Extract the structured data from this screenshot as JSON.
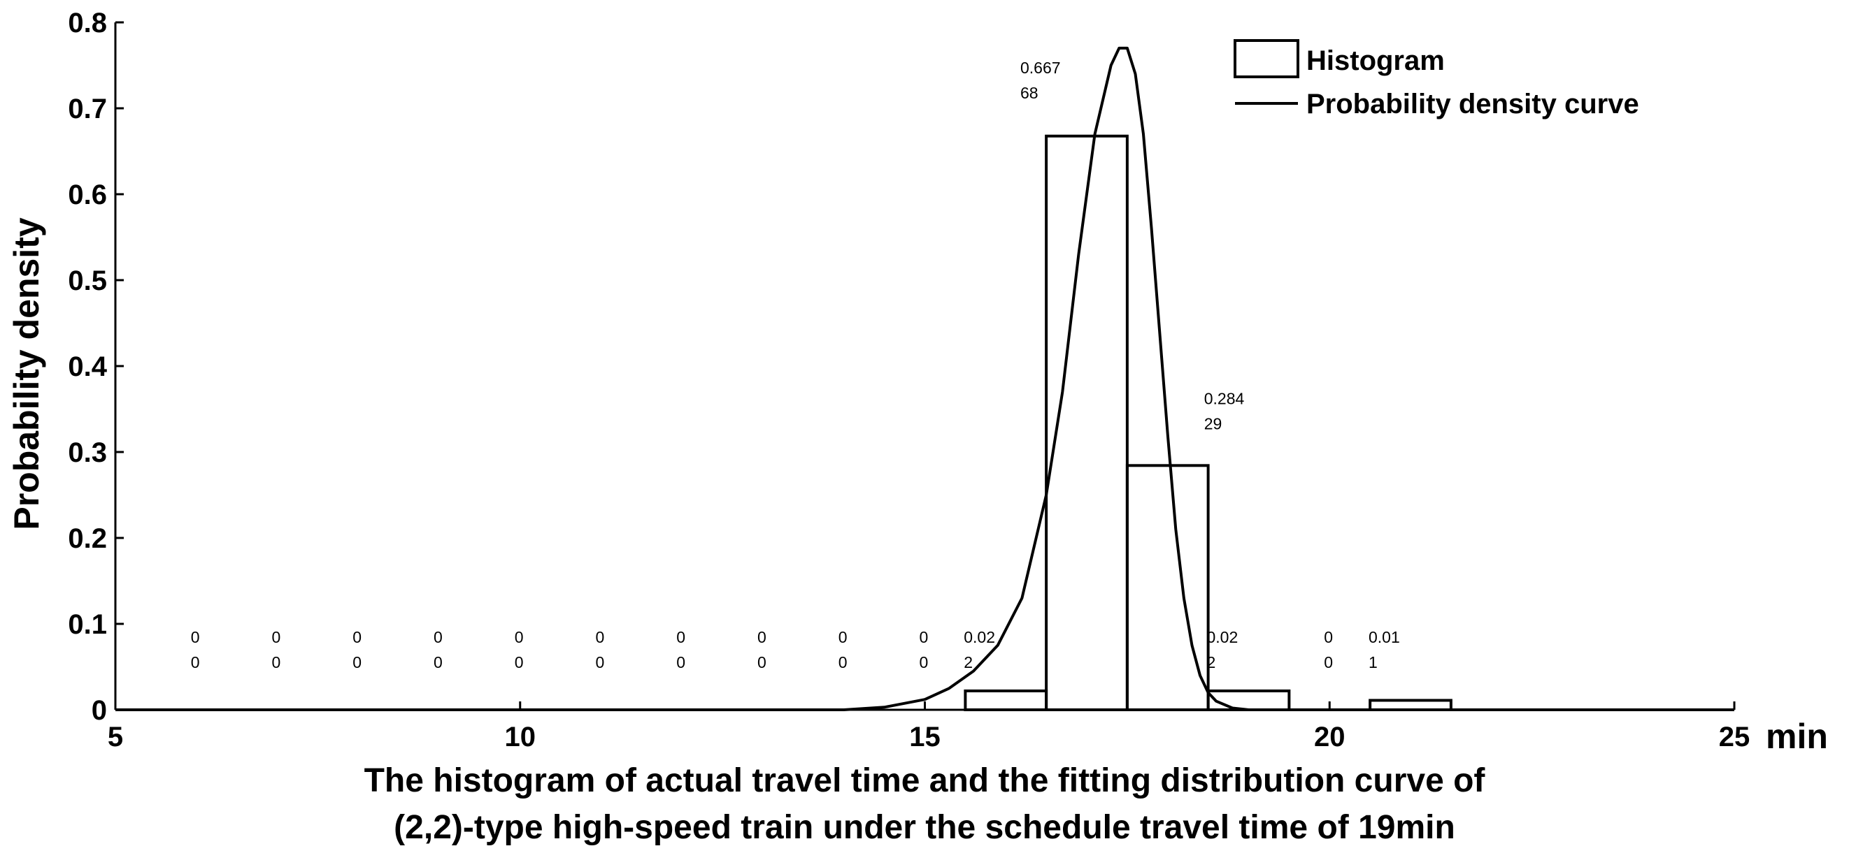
{
  "chart_data": {
    "type": "bar",
    "xlabel": "min",
    "ylabel": "Probability density",
    "xlim": [
      5,
      25
    ],
    "ylim": [
      0,
      0.8
    ],
    "xticks": [
      "5",
      "10",
      "15",
      "20",
      "25"
    ],
    "yticks": [
      "0",
      "0.1",
      "0.2",
      "0.3",
      "0.4",
      "0.5",
      "0.6",
      "0.7",
      "0.8"
    ],
    "grid": false,
    "legend_placement": "top-right",
    "caption": [
      "The histogram of actual travel time and the fitting distribution curve of",
      "(2,2)-type high-speed train under the schedule travel time of 19min"
    ],
    "series": [
      {
        "name": "Histogram",
        "kind": "bar",
        "bin_width": 1,
        "bins": [
          {
            "center": 6,
            "value": 0,
            "label": [
              "0",
              "0"
            ]
          },
          {
            "center": 7,
            "value": 0,
            "label": [
              "0",
              "0"
            ]
          },
          {
            "center": 8,
            "value": 0,
            "label": [
              "0",
              "0"
            ]
          },
          {
            "center": 9,
            "value": 0,
            "label": [
              "0",
              "0"
            ]
          },
          {
            "center": 10,
            "value": 0,
            "label": [
              "0",
              "0"
            ]
          },
          {
            "center": 11,
            "value": 0,
            "label": [
              "0",
              "0"
            ]
          },
          {
            "center": 12,
            "value": 0,
            "label": [
              "0",
              "0"
            ]
          },
          {
            "center": 13,
            "value": 0,
            "label": [
              "0",
              "0"
            ]
          },
          {
            "center": 14,
            "value": 0,
            "label": [
              "0",
              "0"
            ]
          },
          {
            "center": 15,
            "value": 0,
            "label": [
              "0",
              "0"
            ]
          },
          {
            "center": 16,
            "value": 0.022,
            "label": [
              "0.02",
              "2"
            ]
          },
          {
            "center": 17,
            "value": 0.66768,
            "label": [
              "0.667",
              "68"
            ]
          },
          {
            "center": 18,
            "value": 0.28429,
            "label": [
              "0.284",
              "29"
            ]
          },
          {
            "center": 19,
            "value": 0.022,
            "label": [
              "0.02",
              "2"
            ]
          },
          {
            "center": 20,
            "value": 0,
            "label": [
              "0",
              "0"
            ]
          },
          {
            "center": 21,
            "value": 0.011,
            "label": [
              "0.01",
              "1"
            ]
          }
        ]
      },
      {
        "name": "Probability density curve",
        "kind": "line",
        "x": [
          5,
          6,
          7,
          8,
          9,
          10,
          11,
          12,
          13,
          14,
          14.5,
          15,
          15.3,
          15.6,
          15.9,
          16.2,
          16.5,
          16.7,
          16.9,
          17.1,
          17.3,
          17.4,
          17.5,
          17.6,
          17.7,
          17.8,
          17.9,
          18.0,
          18.1,
          18.2,
          18.3,
          18.4,
          18.5,
          18.6,
          18.8,
          19,
          20,
          25
        ],
        "y": [
          0,
          0,
          0,
          0,
          0,
          0,
          0,
          0,
          0,
          0,
          0.003,
          0.012,
          0.025,
          0.045,
          0.075,
          0.13,
          0.25,
          0.37,
          0.53,
          0.67,
          0.75,
          0.77,
          0.77,
          0.74,
          0.67,
          0.56,
          0.44,
          0.32,
          0.21,
          0.13,
          0.075,
          0.04,
          0.02,
          0.01,
          0.002,
          0,
          0,
          0
        ]
      }
    ]
  }
}
